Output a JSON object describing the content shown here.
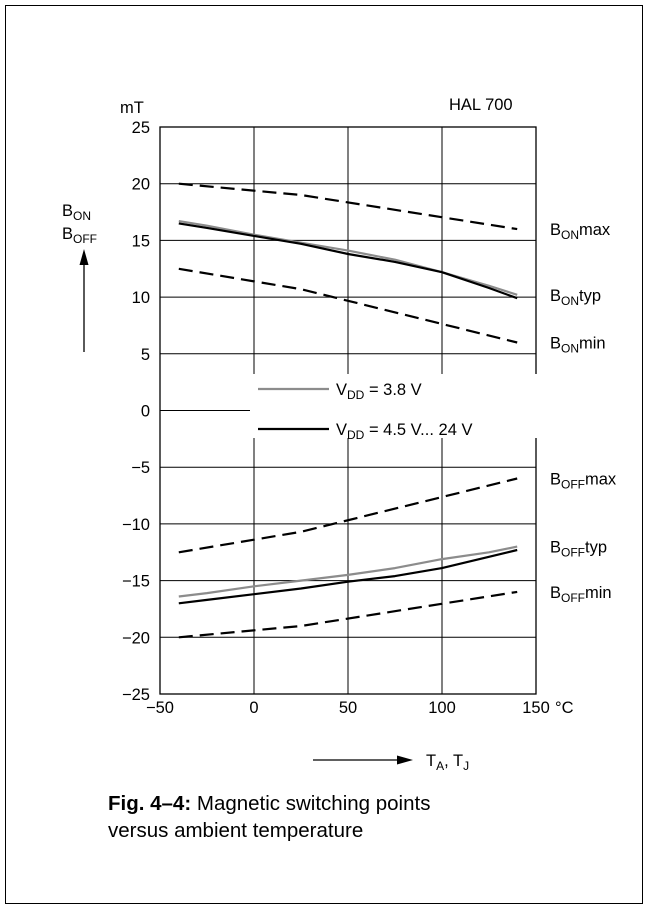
{
  "chart_data": {
    "type": "line",
    "title": "HAL 700",
    "y_unit": "mT",
    "y_axis_label": {
      "B_ON": "ON",
      "B_OFF": "OFF",
      "base": "B"
    },
    "x_axis_label": {
      "TA": "A",
      "TJ": "J",
      "base": "T",
      "sep": ", "
    },
    "x_unit": "°C",
    "xlim": [
      -50,
      150
    ],
    "ylim": [
      -25,
      25
    ],
    "x_ticks": [
      -50,
      0,
      50,
      100,
      150
    ],
    "x_tick_labels": [
      "−50",
      "0",
      "50",
      "100",
      "150"
    ],
    "y_ticks": [
      25,
      20,
      15,
      10,
      5,
      0,
      -5,
      -10,
      -15,
      -20,
      -25
    ],
    "y_tick_labels": [
      "25",
      "20",
      "15",
      "10",
      "5",
      "0",
      "−5",
      "−10",
      "−15",
      "−20",
      "−25"
    ],
    "grid": true,
    "legend": [
      {
        "prefix": "V",
        "sub": "DD",
        "suffix": " = 3.8 V",
        "color": "#8c8c8c"
      },
      {
        "prefix": "V",
        "sub": "DD",
        "suffix": " = 4.5 V... 24 V",
        "color": "#000000"
      }
    ],
    "series": [
      {
        "label_base": "B",
        "label_sub": "ON",
        "label_suffix": "max",
        "style": "dashed",
        "color": "#000000",
        "x": [
          -40,
          25,
          140
        ],
        "y": [
          20,
          19,
          16
        ]
      },
      {
        "label_base": "B",
        "label_sub": "ON",
        "label_suffix": "typ",
        "style": "solid",
        "color": "#8c8c8c",
        "x": [
          -40,
          -25,
          0,
          25,
          50,
          75,
          100,
          125,
          140
        ],
        "y": [
          16.7,
          16.3,
          15.5,
          14.8,
          14.1,
          13.3,
          12.2,
          11.0,
          10.2
        ]
      },
      {
        "label_base": "",
        "label_sub": "",
        "label_suffix": "",
        "style": "solid",
        "color": "#000000",
        "x": [
          -40,
          -25,
          0,
          25,
          50,
          75,
          100,
          125,
          140
        ],
        "y": [
          16.5,
          16.1,
          15.4,
          14.7,
          13.8,
          13.1,
          12.2,
          10.8,
          9.9
        ]
      },
      {
        "label_base": "B",
        "label_sub": "ON",
        "label_suffix": "min",
        "style": "dashed",
        "color": "#000000",
        "x": [
          -40,
          25,
          140
        ],
        "y": [
          12.5,
          10.7,
          6
        ]
      },
      {
        "label_base": "B",
        "label_sub": "OFF",
        "label_suffix": "max",
        "style": "dashed",
        "color": "#000000",
        "x": [
          -40,
          25,
          140
        ],
        "y": [
          -12.5,
          -10.7,
          -6
        ]
      },
      {
        "label_base": "B",
        "label_sub": "OFF",
        "label_suffix": "typ",
        "style": "solid",
        "color": "#8c8c8c",
        "x": [
          -40,
          -25,
          0,
          25,
          50,
          75,
          100,
          125,
          140
        ],
        "y": [
          -16.4,
          -16.1,
          -15.5,
          -15.0,
          -14.5,
          -13.9,
          -13.1,
          -12.5,
          -12.0
        ]
      },
      {
        "label_base": "",
        "label_sub": "",
        "label_suffix": "",
        "style": "solid",
        "color": "#000000",
        "x": [
          -40,
          -25,
          0,
          25,
          50,
          75,
          100,
          125,
          140
        ],
        "y": [
          -17.0,
          -16.7,
          -16.2,
          -15.7,
          -15.1,
          -14.6,
          -13.9,
          -12.9,
          -12.3
        ]
      },
      {
        "label_base": "B",
        "label_sub": "OFF",
        "label_suffix": "min",
        "style": "dashed",
        "color": "#000000",
        "x": [
          -40,
          25,
          140
        ],
        "y": [
          -20,
          -19,
          -16
        ]
      }
    ]
  },
  "caption": {
    "fig_label": "Fig. 4–4:",
    "text_line1": " Magnetic switching points",
    "text_line2": "versus ambient temperature"
  }
}
